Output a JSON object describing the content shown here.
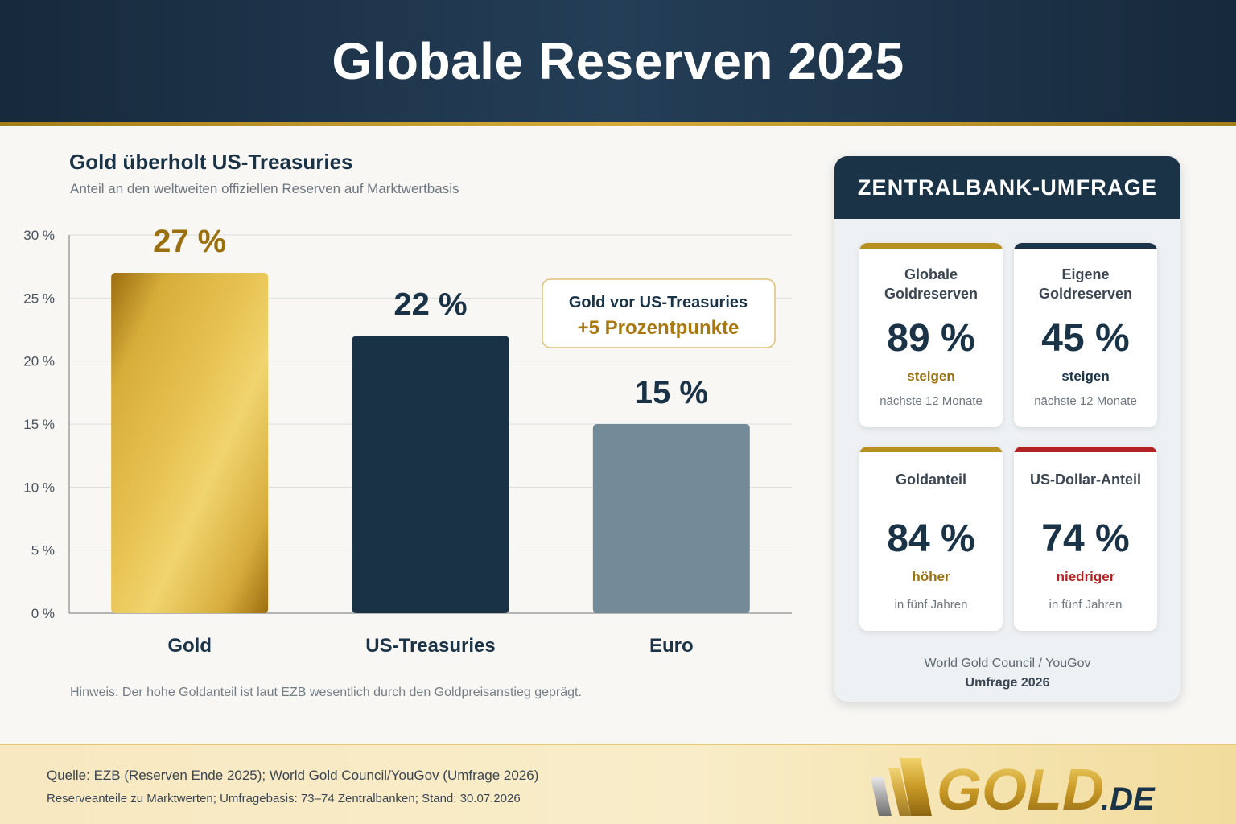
{
  "header": {
    "title": "Globale Reserven 2025"
  },
  "chart": {
    "title": "Gold überholt US-Treasuries",
    "subtitle": "Anteil an den weltweiten offiziellen Reserven auf Marktwertbasis",
    "hint": "Hinweis: Der hohe Goldanteil ist laut EZB wesentlich durch den Goldpreisanstieg geprägt.",
    "callout": {
      "line1": "Gold vor US-Treasuries",
      "line2": "+5 Prozentpunkte"
    }
  },
  "chart_data": {
    "type": "bar",
    "categories": [
      "Gold",
      "US-Treasuries",
      "Euro"
    ],
    "values": [
      27,
      22,
      15
    ],
    "value_labels": [
      "27 %",
      "22 %",
      "15 %"
    ],
    "colors": [
      "#c9a02e",
      "#193246",
      "#738a99"
    ],
    "label_colors": [
      "#9a6f0d",
      "#193246",
      "#193246"
    ],
    "title": "Gold überholt US-Treasuries",
    "subtitle": "Anteil an den weltweiten offiziellen Reserven auf Marktwertbasis",
    "xlabel": "",
    "ylabel": "",
    "ylim": [
      0,
      30
    ],
    "yticks": [
      0,
      5,
      10,
      15,
      20,
      25,
      30
    ],
    "ytick_labels": [
      "0 %",
      "5 %",
      "10 %",
      "15 %",
      "20 %",
      "25 %",
      "30 %"
    ],
    "grid": true,
    "legend": "none"
  },
  "survey": {
    "title": "ZENTRALBANK-UMFRAGE",
    "cards": [
      {
        "label": "Globale Goldreserven",
        "value": "89 %",
        "trend": "steigen",
        "period": "nächste 12 Monate",
        "bar_color": "#b8901f",
        "trend_color": "#9a6f0d"
      },
      {
        "label": "Eigene Goldreserven",
        "value": "45 %",
        "trend": "steigen",
        "period": "nächste 12 Monate",
        "bar_color": "#1b3347",
        "trend_color": "#1b3347"
      },
      {
        "label": "Goldanteil",
        "value": "84 %",
        "trend": "höher",
        "period": "in fünf Jahren",
        "bar_color": "#b8901f",
        "trend_color": "#9a6f0d"
      },
      {
        "label": "US-Dollar-Anteil",
        "value": "74 %",
        "trend": "niedriger",
        "period": "in fünf Jahren",
        "bar_color": "#b42323",
        "trend_color": "#b42323"
      }
    ],
    "source_line1": "World Gold Council / YouGov",
    "source_line2": "Umfrage 2026"
  },
  "footer": {
    "source": "Quelle: EZB (Reserven Ende 2025); World Gold Council/YouGov (Umfrage 2026)",
    "note": "Reserveanteile zu Marktwerten; Umfragebasis: 73–74 Zentralbanken; Stand: 30.07.2026",
    "logo_text": "GOLD",
    "logo_suffix": ".DE"
  }
}
